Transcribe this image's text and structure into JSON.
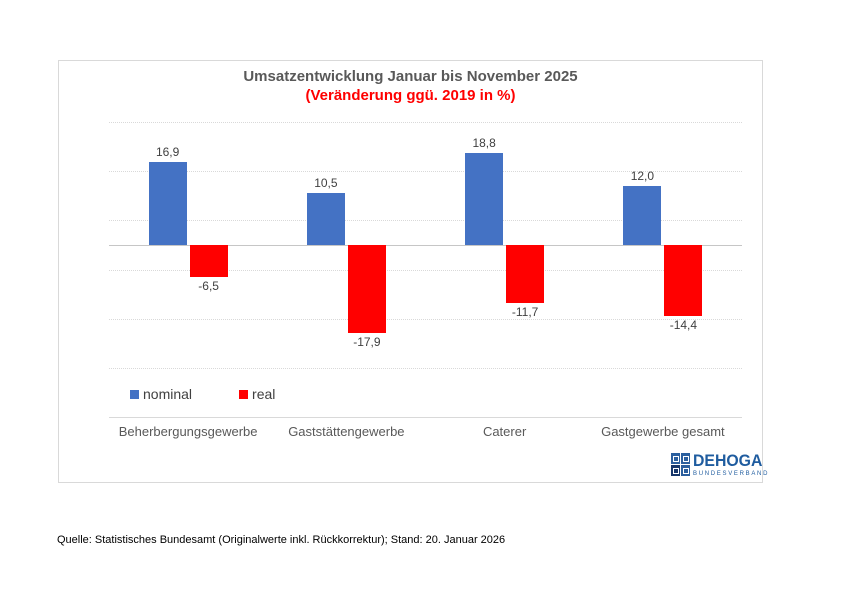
{
  "chart": {
    "title": "Umsatzentwicklung Januar bis November 2025",
    "subtitle": "(Veränderung ggü. 2019 in %)"
  },
  "chart_data": {
    "type": "bar",
    "title": "Umsatzentwicklung Januar bis November 2025",
    "subtitle": "(Veränderung ggü. 2019 in %)",
    "xlabel": "",
    "ylabel": "",
    "categories": [
      "Beherbergungsgewerbe",
      "Gaststättengewerbe",
      "Caterer",
      "Gastgewerbe gesamt"
    ],
    "series": [
      {
        "name": "nominal",
        "color": "#4472c4",
        "values": [
          16.9,
          10.5,
          18.8,
          12.0
        ],
        "labels": [
          "16,9",
          "10,5",
          "18,8",
          "12,0"
        ]
      },
      {
        "name": "real",
        "color": "#ff0000",
        "values": [
          -6.5,
          -17.9,
          -11.7,
          -14.4
        ],
        "labels": [
          "-6,5",
          "-17,9",
          "-11,7",
          "-14,4"
        ]
      }
    ],
    "ylim": [
      -25,
      25
    ],
    "gridlines": [
      25,
      15,
      5,
      -5,
      -15,
      -25
    ],
    "grid": true,
    "legend_position": "bottom-left"
  },
  "legend": {
    "items": [
      {
        "label": "nominal",
        "color": "#4472c4"
      },
      {
        "label": "real",
        "color": "#ff0000"
      }
    ]
  },
  "logo": {
    "name": "DEHOGA",
    "subtext": "BUNDESVERBAND",
    "color": "#1f5c9f"
  },
  "footer": {
    "source": "Quelle: Statistisches Bundesamt (Originalwerte inkl. Rückkorrektur); Stand: 20. Januar 2026"
  },
  "colors": {
    "nominal_bar": "#4472c4",
    "real_bar": "#ff0000",
    "title_text": "#595959",
    "subtitle_text": "#ff0000",
    "gridline": "#d9d9d9"
  }
}
